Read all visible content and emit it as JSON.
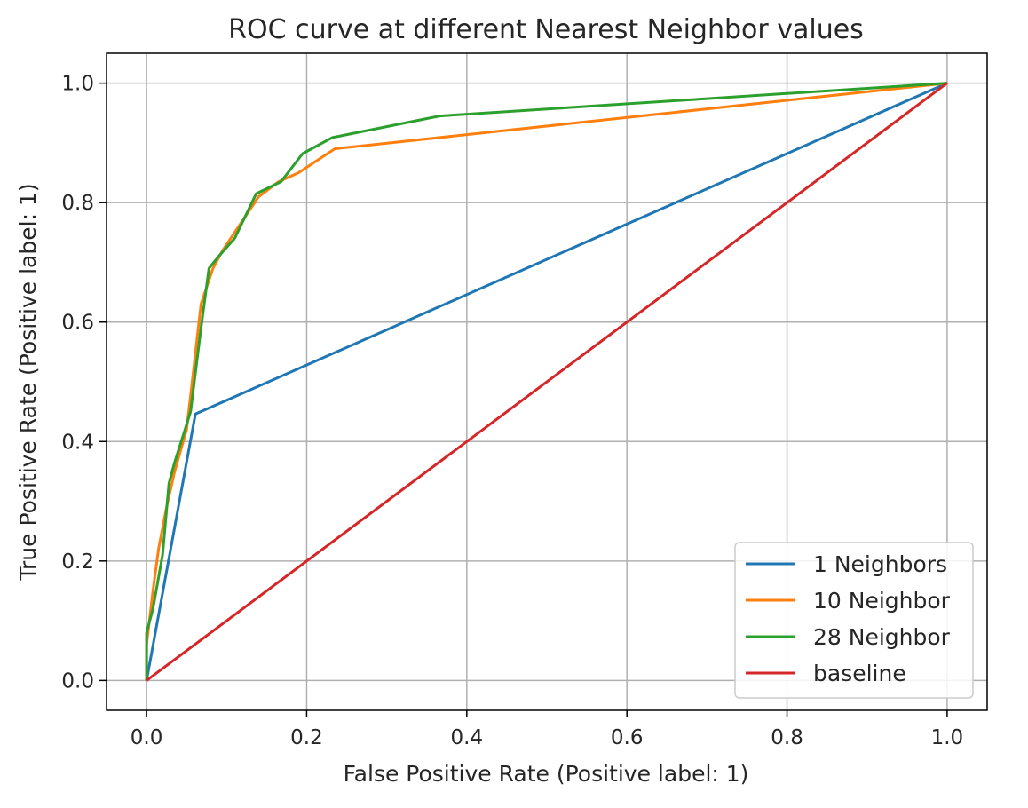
{
  "chart_data": {
    "type": "line",
    "title": "ROC curve at different Nearest Neighbor values",
    "xlabel": "False Positive Rate (Positive label: 1)",
    "ylabel": "True Positive Rate (Positive label: 1)",
    "xlim": [
      -0.05,
      1.05
    ],
    "ylim": [
      -0.05,
      1.05
    ],
    "xticks": [
      0.0,
      0.2,
      0.4,
      0.6,
      0.8,
      1.0
    ],
    "xtick_labels": [
      "0.0",
      "0.2",
      "0.4",
      "0.6",
      "0.8",
      "1.0"
    ],
    "yticks": [
      0.0,
      0.2,
      0.4,
      0.6,
      0.8,
      1.0
    ],
    "ytick_labels": [
      "0.0",
      "0.2",
      "0.4",
      "0.6",
      "0.8",
      "1.0"
    ],
    "grid": true,
    "legend_position": "bottom-right",
    "series": [
      {
        "name": "1 Neighbors",
        "color": "#1f77b4",
        "points": [
          [
            0.0,
            0.0
          ],
          [
            0.061,
            0.446
          ],
          [
            1.0,
            1.0
          ]
        ]
      },
      {
        "name": "10 Neighbor",
        "color": "#ff7f0e",
        "points": [
          [
            0.0,
            0.0
          ],
          [
            0.0,
            0.06
          ],
          [
            0.008,
            0.15
          ],
          [
            0.015,
            0.22
          ],
          [
            0.025,
            0.29
          ],
          [
            0.035,
            0.35
          ],
          [
            0.05,
            0.42
          ],
          [
            0.057,
            0.5
          ],
          [
            0.068,
            0.63
          ],
          [
            0.083,
            0.69
          ],
          [
            0.095,
            0.72
          ],
          [
            0.115,
            0.76
          ],
          [
            0.14,
            0.81
          ],
          [
            0.165,
            0.835
          ],
          [
            0.19,
            0.85
          ],
          [
            0.235,
            0.89
          ],
          [
            1.0,
            1.0
          ]
        ]
      },
      {
        "name": "28 Neighbor",
        "color": "#2ca02c",
        "points": [
          [
            0.0,
            0.0
          ],
          [
            0.0,
            0.08
          ],
          [
            0.008,
            0.12
          ],
          [
            0.02,
            0.21
          ],
          [
            0.028,
            0.33
          ],
          [
            0.035,
            0.365
          ],
          [
            0.048,
            0.42
          ],
          [
            0.055,
            0.45
          ],
          [
            0.068,
            0.59
          ],
          [
            0.078,
            0.69
          ],
          [
            0.09,
            0.71
          ],
          [
            0.11,
            0.74
          ],
          [
            0.137,
            0.815
          ],
          [
            0.168,
            0.835
          ],
          [
            0.195,
            0.882
          ],
          [
            0.232,
            0.909
          ],
          [
            0.366,
            0.945
          ],
          [
            1.0,
            1.0
          ]
        ]
      },
      {
        "name": "baseline",
        "color": "#d62728",
        "points": [
          [
            0.0,
            0.0
          ],
          [
            1.0,
            1.0
          ]
        ]
      }
    ]
  }
}
